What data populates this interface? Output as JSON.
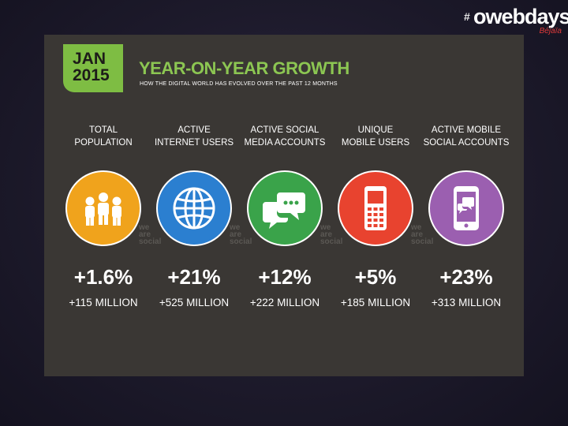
{
  "logo": {
    "hash": "#",
    "main": "owebdays",
    "sub": "Béjaïa"
  },
  "header": {
    "date_line1": "JAN",
    "date_line2": "2015",
    "title": "YEAR-ON-YEAR GROWTH",
    "subtitle": "HOW THE DIGITAL WORLD HAS EVOLVED OVER THE PAST 12 MONTHS"
  },
  "watermark": {
    "line1": "we",
    "line2": "are",
    "line3": "social"
  },
  "metrics": [
    {
      "label1": "TOTAL",
      "label2": "POPULATION",
      "growth": "+1.6%",
      "change": "+115 MILLION",
      "color": "#f0a31c",
      "icon": "people-icon"
    },
    {
      "label1": "ACTIVE",
      "label2": "INTERNET USERS",
      "growth": "+21%",
      "change": "+525 MILLION",
      "color": "#2b7fd0",
      "icon": "globe-icon"
    },
    {
      "label1": "ACTIVE SOCIAL",
      "label2": "MEDIA ACCOUNTS",
      "growth": "+12%",
      "change": "+222 MILLION",
      "color": "#3aa34a",
      "icon": "chat-bubbles-icon"
    },
    {
      "label1": "UNIQUE",
      "label2": "MOBILE USERS",
      "growth": "+5%",
      "change": "+185 MILLION",
      "color": "#e8432f",
      "icon": "mobile-phone-icon"
    },
    {
      "label1": "ACTIVE MOBILE",
      "label2": "SOCIAL ACCOUNTS",
      "growth": "+23%",
      "change": "+313 MILLION",
      "color": "#9b5fb0",
      "icon": "smartphone-chat-icon"
    }
  ]
}
